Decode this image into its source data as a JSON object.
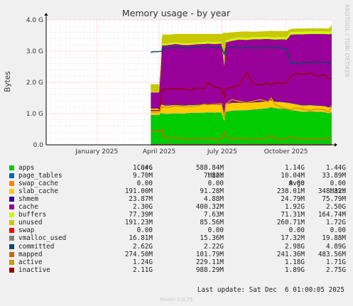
{
  "chart_data": {
    "type": "area",
    "title": "Memory usage - by year",
    "ylabel": "Bytes",
    "side_label": "RRDTOOL / TOBI OETIKER",
    "y_ticks": [
      "0.0",
      "1.0 G",
      "2.0 G",
      "3.0 G",
      "4.0 G"
    ],
    "y_tick_values": [
      0,
      1,
      2,
      3,
      4
    ],
    "ylim": [
      0,
      4
    ],
    "x_ticks": [
      "January 2025",
      "April 2025",
      "July 2025",
      "October 2025"
    ],
    "x_tick_dates": [
      "2025-01-01",
      "2025-04-01",
      "2025-07-01",
      "2025-10-01"
    ],
    "xlim": [
      "2024-10-20",
      "2025-12-06"
    ],
    "grid": true,
    "x": [
      "2025-03-20",
      "2025-03-22",
      "2025-03-24",
      "2025-03-26",
      "2025-03-29",
      "2025-04-01",
      "2025-04-03",
      "2025-04-05",
      "2025-04-06",
      "2025-04-09",
      "2025-04-15",
      "2025-04-25",
      "2025-05-05",
      "2025-05-15",
      "2025-05-25",
      "2025-06-05",
      "2025-06-10",
      "2025-06-20",
      "2025-06-30",
      "2025-07-04",
      "2025-07-06",
      "2025-07-15",
      "2025-07-25",
      "2025-08-05",
      "2025-08-15",
      "2025-08-25",
      "2025-09-05",
      "2025-09-10",
      "2025-09-15",
      "2025-09-25",
      "2025-10-02",
      "2025-10-08",
      "2025-10-15",
      "2025-10-25",
      "2025-11-05",
      "2025-11-15",
      "2025-11-25",
      "2025-12-02",
      "2025-12-06"
    ],
    "stack_series": [
      {
        "name": "apps",
        "color": "#00cc00",
        "values": [
          0.95,
          0.95,
          0.95,
          0.95,
          0.95,
          0.95,
          1.0,
          1.02,
          1.0,
          0.98,
          0.98,
          1.0,
          0.99,
          1.01,
          1.02,
          1.02,
          1.03,
          1.02,
          1.03,
          0.75,
          1.05,
          1.08,
          1.1,
          1.1,
          1.12,
          1.14,
          1.16,
          1.2,
          1.16,
          1.15,
          1.14,
          1.1,
          1.08,
          1.05,
          1.06,
          1.05,
          1.04,
          1.0,
          1.04
        ]
      },
      {
        "name": "page_tables",
        "color": "#0066b3",
        "values": [
          0.01,
          0.01,
          0.01,
          0.01,
          0.01,
          0.01,
          0.01,
          0.01,
          0.01,
          0.01,
          0.01,
          0.01,
          0.01,
          0.01,
          0.01,
          0.01,
          0.01,
          0.01,
          0.01,
          0.01,
          0.01,
          0.01,
          0.01,
          0.01,
          0.01,
          0.01,
          0.01,
          0.01,
          0.01,
          0.01,
          0.01,
          0.01,
          0.01,
          0.01,
          0.01,
          0.01,
          0.01,
          0.01,
          0.01
        ]
      },
      {
        "name": "swap_cache",
        "color": "#ff8000",
        "values": [
          0,
          0,
          0,
          0,
          0,
          0,
          0,
          0,
          0,
          0,
          0,
          0,
          0,
          0,
          0,
          0,
          0,
          0,
          0,
          0,
          0,
          0,
          0,
          0,
          0,
          0,
          0,
          0,
          0,
          0,
          0,
          0,
          0,
          0,
          0,
          0,
          0,
          0,
          0
        ]
      },
      {
        "name": "slab_cache",
        "color": "#ffcc00",
        "values": [
          0.2,
          0.2,
          0.2,
          0.2,
          0.2,
          0.2,
          0.25,
          0.27,
          0.27,
          0.27,
          0.27,
          0.27,
          0.26,
          0.25,
          0.25,
          0.26,
          0.26,
          0.25,
          0.25,
          0.25,
          0.25,
          0.25,
          0.24,
          0.23,
          0.23,
          0.22,
          0.22,
          0.22,
          0.21,
          0.21,
          0.2,
          0.22,
          0.21,
          0.2,
          0.2,
          0.19,
          0.19,
          0.19,
          0.19
        ]
      },
      {
        "name": "shmem",
        "color": "#330099",
        "values": [
          0.02,
          0.02,
          0.02,
          0.02,
          0.02,
          0.02,
          0.02,
          0.02,
          0.02,
          0.02,
          0.02,
          0.02,
          0.02,
          0.02,
          0.02,
          0.02,
          0.02,
          0.02,
          0.02,
          0.02,
          0.02,
          0.02,
          0.02,
          0.02,
          0.02,
          0.02,
          0.02,
          0.02,
          0.02,
          0.02,
          0.02,
          0.02,
          0.02,
          0.02,
          0.02,
          0.02,
          0.02,
          0.02,
          0.02
        ]
      },
      {
        "name": "cache",
        "color": "#990099",
        "values": [
          0.5,
          0.5,
          0.5,
          0.5,
          0.5,
          0.5,
          1.0,
          1.8,
          1.9,
          1.9,
          1.92,
          1.93,
          1.92,
          1.91,
          1.92,
          1.92,
          1.92,
          1.93,
          1.93,
          1.5,
          1.95,
          1.97,
          2.0,
          2.0,
          2.0,
          1.99,
          1.98,
          1.93,
          1.97,
          1.99,
          2.0,
          2.18,
          2.22,
          2.26,
          2.26,
          2.28,
          2.29,
          2.32,
          2.3
        ]
      },
      {
        "name": "buffers",
        "color": "#ccff00",
        "values": [
          0.01,
          0.01,
          0.01,
          0.01,
          0.01,
          0.01,
          0.02,
          0.04,
          0.05,
          0.05,
          0.05,
          0.05,
          0.05,
          0.05,
          0.05,
          0.06,
          0.06,
          0.06,
          0.06,
          0.06,
          0.06,
          0.06,
          0.07,
          0.07,
          0.07,
          0.07,
          0.07,
          0.07,
          0.07,
          0.07,
          0.07,
          0.08,
          0.08,
          0.08,
          0.08,
          0.08,
          0.08,
          0.08,
          0.08
        ]
      },
      {
        "name": "unused",
        "color": "#c8c800",
        "values": [
          0.25,
          0.25,
          0.25,
          0.25,
          0.25,
          0.25,
          0.2,
          0.28,
          0.28,
          0.3,
          0.28,
          0.27,
          0.3,
          0.3,
          0.28,
          0.26,
          0.25,
          0.26,
          0.25,
          1.0,
          0.24,
          0.21,
          0.18,
          0.2,
          0.17,
          0.18,
          0.18,
          0.2,
          0.2,
          0.19,
          0.2,
          0.1,
          0.1,
          0.1,
          0.1,
          0.1,
          0.1,
          0.1,
          0.19
        ]
      }
    ],
    "line_series": [
      {
        "name": "swap",
        "color": "#ff0000",
        "values": [
          0,
          0,
          0,
          0,
          0,
          0,
          0,
          0,
          0,
          0,
          0,
          0,
          0,
          0,
          0,
          0,
          0,
          0,
          0,
          0,
          0,
          0,
          0,
          0,
          0,
          0,
          0,
          0,
          0,
          0,
          0,
          0,
          0,
          0,
          0,
          0,
          0,
          0,
          0
        ]
      },
      {
        "name": "vmalloc_used",
        "color": "#808080",
        "values": [
          0.015,
          0.015,
          0.015,
          0.015,
          0.015,
          0.015,
          0.016,
          0.017,
          0.017,
          0.017,
          0.017,
          0.017,
          0.017,
          0.017,
          0.017,
          0.017,
          0.017,
          0.017,
          0.017,
          0.017,
          0.017,
          0.017,
          0.017,
          0.017,
          0.017,
          0.017,
          0.017,
          0.017,
          0.017,
          0.017,
          0.017,
          0.017,
          0.017,
          0.017,
          0.017,
          0.017,
          0.017,
          0.017,
          0.017
        ]
      },
      {
        "name": "committed",
        "color": "#004d66",
        "values": [
          2.95,
          2.98,
          2.97,
          2.99,
          2.98,
          2.99,
          2.99,
          3.0,
          3.1,
          3.1,
          3.1,
          3.12,
          3.11,
          3.1,
          3.12,
          3.11,
          3.13,
          3.12,
          3.12,
          2.9,
          3.1,
          3.12,
          3.1,
          3.12,
          3.11,
          3.1,
          3.12,
          3.1,
          3.12,
          3.1,
          3.05,
          2.62,
          2.62,
          2.63,
          2.64,
          2.65,
          2.65,
          2.62,
          2.62
        ]
      },
      {
        "name": "mapped",
        "color": "#cc6600",
        "values": [
          0.45,
          0.45,
          0.45,
          0.45,
          0.45,
          0.45,
          0.45,
          0.5,
          0.3,
          0.25,
          0.23,
          0.22,
          0.2,
          0.2,
          0.2,
          0.2,
          0.22,
          0.18,
          0.2,
          0.4,
          0.25,
          0.2,
          0.22,
          0.2,
          0.2,
          0.2,
          0.22,
          0.3,
          0.2,
          0.2,
          0.2,
          0.25,
          0.2,
          0.2,
          0.18,
          0.18,
          0.2,
          0.2,
          0.27
        ]
      },
      {
        "name": "active",
        "color": "#cc9900",
        "values": [
          1.05,
          1.05,
          1.05,
          1.05,
          1.05,
          1.05,
          1.1,
          1.25,
          1.2,
          1.22,
          1.2,
          1.25,
          1.23,
          1.22,
          1.25,
          1.3,
          1.28,
          1.3,
          1.32,
          0.85,
          1.3,
          1.45,
          1.4,
          1.35,
          1.4,
          1.45,
          1.38,
          1.5,
          1.3,
          1.2,
          1.15,
          1.12,
          1.18,
          1.15,
          1.1,
          1.15,
          1.12,
          1.05,
          1.24
        ]
      },
      {
        "name": "inactive",
        "color": "#990000",
        "values": [
          1.1,
          1.1,
          1.1,
          1.1,
          1.1,
          1.1,
          1.3,
          1.8,
          1.75,
          1.78,
          1.8,
          1.78,
          1.8,
          1.75,
          1.82,
          1.8,
          2.0,
          1.85,
          1.8,
          1.5,
          1.78,
          1.85,
          1.9,
          2.3,
          1.95,
          1.92,
          1.98,
          1.9,
          2.0,
          1.95,
          2.0,
          2.2,
          2.3,
          2.25,
          2.3,
          2.2,
          2.25,
          2.12,
          2.11
        ]
      }
    ]
  },
  "legend": {
    "headers": [
      "Cur:",
      "Min:",
      "Avg:",
      "Max:"
    ],
    "rows": [
      {
        "name": "apps",
        "color": "#00cc00",
        "cur": "1.04G",
        "min": "588.84M",
        "avg": "1.14G",
        "max": "1.44G"
      },
      {
        "name": "page_tables",
        "color": "#0066b3",
        "cur": "9.70M",
        "min": "7.82M",
        "avg": "10.04M",
        "max": "33.89M"
      },
      {
        "name": "swap_cache",
        "color": "#ff8000",
        "cur": "0.00",
        "min": "0.00",
        "avg": "0.00",
        "max": "0.00"
      },
      {
        "name": "slab_cache",
        "color": "#ffcc00",
        "cur": "191.00M",
        "min": "91.28M",
        "avg": "238.01M",
        "max": "348.32M"
      },
      {
        "name": "shmem",
        "color": "#330099",
        "cur": "23.87M",
        "min": "4.88M",
        "avg": "24.79M",
        "max": "75.79M"
      },
      {
        "name": "cache",
        "color": "#990099",
        "cur": "2.30G",
        "min": "400.32M",
        "avg": "1.92G",
        "max": "2.50G"
      },
      {
        "name": "buffers",
        "color": "#ccff00",
        "cur": "77.39M",
        "min": "7.63M",
        "avg": "71.31M",
        "max": "164.74M"
      },
      {
        "name": "unused",
        "color": "#c8c800",
        "cur": "191.23M",
        "min": "85.56M",
        "avg": "260.71M",
        "max": "1.72G"
      },
      {
        "name": "swap",
        "color": "#ff0000",
        "cur": "0.00",
        "min": "0.00",
        "avg": "0.00",
        "max": "0.00"
      },
      {
        "name": "vmalloc_used",
        "color": "#808080",
        "cur": "16.81M",
        "min": "15.36M",
        "avg": "17.32M",
        "max": "19.88M"
      },
      {
        "name": "committed",
        "color": "#004d66",
        "cur": "2.62G",
        "min": "2.22G",
        "avg": "2.98G",
        "max": "4.89G"
      },
      {
        "name": "mapped",
        "color": "#cc6600",
        "cur": "274.50M",
        "min": "101.79M",
        "avg": "241.36M",
        "max": "483.56M"
      },
      {
        "name": "active",
        "color": "#cc9900",
        "cur": "1.24G",
        "min": "229.11M",
        "avg": "1.18G",
        "max": "1.71G"
      },
      {
        "name": "inactive",
        "color": "#990000",
        "cur": "2.11G",
        "min": "988.29M",
        "avg": "1.89G",
        "max": "2.75G"
      }
    ]
  },
  "footer": {
    "last_update": "Last update: Sat Dec  6 01:00:05 2025",
    "munin": "Munin 2.0.75"
  }
}
